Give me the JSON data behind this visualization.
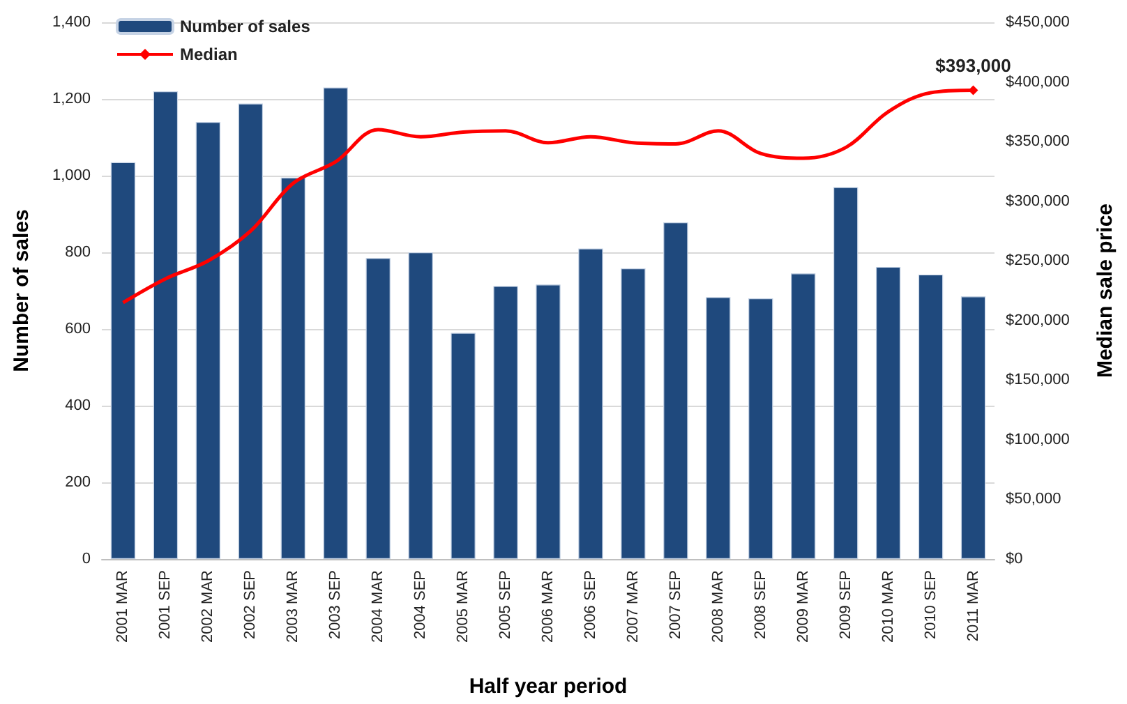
{
  "chart_data": {
    "type": "bar",
    "xlabel": "Half year period",
    "ylabel": "Number of sales",
    "y2label": "Median sale price",
    "categories": [
      "2001 MAR",
      "2001 SEP",
      "2002 MAR",
      "2002 SEP",
      "2003 MAR",
      "2003 SEP",
      "2004 MAR",
      "2004 SEP",
      "2005 MAR",
      "2005 SEP",
      "2006 MAR",
      "2006 SEP",
      "2007 MAR",
      "2007 SEP",
      "2008 MAR",
      "2008 SEP",
      "2009 MAR",
      "2009 SEP",
      "2010 MAR",
      "2010 SEP",
      "2011 MAR"
    ],
    "series": [
      {
        "name": "Number of sales",
        "color": "#1f497d",
        "values": [
          1035,
          1220,
          1140,
          1188,
          995,
          1230,
          785,
          800,
          590,
          712,
          716,
          810,
          758,
          878,
          683,
          680,
          745,
          970,
          762,
          742,
          685
        ]
      },
      {
        "name": "Median",
        "type": "line",
        "axis": "y2",
        "color": "#ff0000",
        "values": [
          215000,
          235000,
          250000,
          275000,
          315000,
          333000,
          360000,
          354000,
          358000,
          359000,
          349000,
          354000,
          349000,
          348000,
          359000,
          340000,
          336000,
          345000,
          375000,
          391000,
          393000
        ],
        "value_labels": [
          null,
          null,
          null,
          null,
          null,
          null,
          null,
          null,
          null,
          null,
          null,
          null,
          null,
          null,
          null,
          null,
          null,
          null,
          null,
          null,
          "$393,000"
        ]
      }
    ],
    "ylim": [
      0,
      1400
    ],
    "yticks": [
      0,
      200,
      400,
      600,
      800,
      {
        "value": 1000,
        "label": "1,000"
      },
      {
        "value": 1200,
        "label": "1,200"
      },
      {
        "value": 1400,
        "label": "1,400"
      }
    ],
    "y2lim": [
      0,
      450000
    ],
    "y2ticks": [
      {
        "value": 0,
        "label": "$0"
      },
      {
        "value": 50000,
        "label": "$50,000"
      },
      {
        "value": 100000,
        "label": "$100,000"
      },
      {
        "value": 150000,
        "label": "$150,000"
      },
      {
        "value": 200000,
        "label": "$200,000"
      },
      {
        "value": 250000,
        "label": "$250,000"
      },
      {
        "value": 300000,
        "label": "$300,000"
      },
      {
        "value": 350000,
        "label": "$350,000"
      },
      {
        "value": 400000,
        "label": "$400,000"
      },
      {
        "value": 450000,
        "label": "$450,000"
      }
    ],
    "grid": "y",
    "legend": "top left"
  }
}
